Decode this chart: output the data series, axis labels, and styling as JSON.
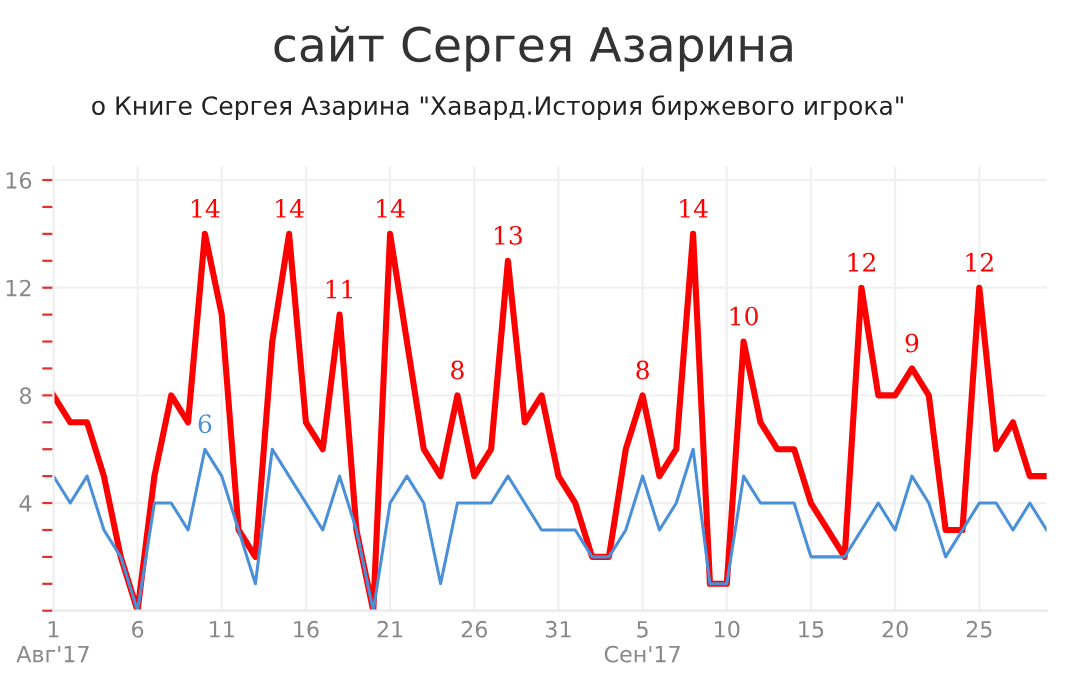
{
  "chart_data": {
    "type": "line",
    "title": "сайт Сергея Азарина",
    "subtitle": "о Книге Сергея Азарина \"Хавард.История биржевого игрока\"",
    "x": [
      "2017-08-01",
      "2017-08-02",
      "2017-08-03",
      "2017-08-04",
      "2017-08-05",
      "2017-08-06",
      "2017-08-07",
      "2017-08-08",
      "2017-08-09",
      "2017-08-10",
      "2017-08-11",
      "2017-08-12",
      "2017-08-13",
      "2017-08-14",
      "2017-08-15",
      "2017-08-16",
      "2017-08-17",
      "2017-08-18",
      "2017-08-19",
      "2017-08-20",
      "2017-08-21",
      "2017-08-22",
      "2017-08-23",
      "2017-08-24",
      "2017-08-25",
      "2017-08-26",
      "2017-08-27",
      "2017-08-28",
      "2017-08-29",
      "2017-08-30",
      "2017-08-31",
      "2017-09-01",
      "2017-09-02",
      "2017-09-03",
      "2017-09-04",
      "2017-09-05",
      "2017-09-06",
      "2017-09-07",
      "2017-09-08",
      "2017-09-09",
      "2017-09-10",
      "2017-09-11",
      "2017-09-12",
      "2017-09-13",
      "2017-09-14",
      "2017-09-15",
      "2017-09-16",
      "2017-09-17",
      "2017-09-18",
      "2017-09-19",
      "2017-09-20",
      "2017-09-21",
      "2017-09-22",
      "2017-09-23",
      "2017-09-24",
      "2017-09-25",
      "2017-09-26",
      "2017-09-27",
      "2017-09-28",
      "2017-09-29"
    ],
    "series": [
      {
        "color": "#ff0000",
        "values": [
          8,
          7,
          7,
          5,
          2,
          0,
          5,
          8,
          7,
          14,
          11,
          3,
          2,
          10,
          14,
          7,
          6,
          11,
          3,
          0,
          14,
          10,
          6,
          5,
          8,
          5,
          6,
          13,
          7,
          8,
          5,
          4,
          2,
          2,
          6,
          8,
          5,
          6,
          14,
          1,
          1,
          10,
          7,
          6,
          6,
          4,
          3,
          2,
          12,
          8,
          8,
          9,
          8,
          3,
          3,
          12,
          6,
          7,
          5,
          5
        ]
      },
      {
        "color": "#4a90d9",
        "values": [
          5,
          4,
          5,
          3,
          2,
          0,
          4,
          4,
          3,
          6,
          5,
          3,
          1,
          6,
          5,
          4,
          3,
          5,
          3,
          0,
          4,
          5,
          4,
          1,
          4,
          4,
          4,
          5,
          4,
          3,
          3,
          3,
          2,
          2,
          3,
          5,
          3,
          4,
          6,
          1,
          1,
          5,
          4,
          4,
          4,
          2,
          2,
          2,
          3,
          4,
          3,
          5,
          4,
          2,
          3,
          4,
          4,
          3,
          4,
          3
        ]
      }
    ],
    "annotations": [
      {
        "text": "14",
        "x": "2017-08-10",
        "y": 14
      },
      {
        "text": "6",
        "x": "2017-08-10",
        "y": 6
      },
      {
        "text": "14",
        "x": "2017-08-15",
        "y": 14
      },
      {
        "text": "11",
        "x": "2017-08-18",
        "y": 11
      },
      {
        "text": "14",
        "x": "2017-08-21",
        "y": 14
      },
      {
        "text": "8",
        "x": "2017-08-25",
        "y": 8
      },
      {
        "text": "13",
        "x": "2017-08-28",
        "y": 13
      },
      {
        "text": "8",
        "x": "2017-09-05",
        "y": 8
      },
      {
        "text": "14",
        "x": "2017-09-08",
        "y": 14
      },
      {
        "text": "10",
        "x": "2017-09-11",
        "y": 10
      },
      {
        "text": "12",
        "x": "2017-09-18",
        "y": 12
      },
      {
        "text": "9",
        "x": "2017-09-21",
        "y": 9
      },
      {
        "text": "12",
        "x": "2017-09-25",
        "y": 12
      }
    ],
    "xlim": [
      "2017-08-01",
      "2017-09-29"
    ],
    "xticks": [
      {
        "value": "2017-08-01",
        "label": "1\nАвг'17"
      },
      {
        "value": "2017-08-06",
        "label": "6"
      },
      {
        "value": "2017-08-11",
        "label": "11"
      },
      {
        "value": "2017-08-16",
        "label": "16"
      },
      {
        "value": "2017-08-21",
        "label": "21"
      },
      {
        "value": "2017-08-26",
        "label": "26"
      },
      {
        "value": "2017-08-31",
        "label": "31"
      },
      {
        "value": "2017-09-05",
        "label": "5\nСен'17"
      },
      {
        "value": "2017-09-10",
        "label": "10"
      },
      {
        "value": "2017-09-15",
        "label": "15"
      },
      {
        "value": "2017-09-20",
        "label": "20"
      },
      {
        "value": "2017-09-25",
        "label": "25"
      }
    ],
    "ylim": [
      0,
      16.5
    ],
    "yticks": [
      {
        "value": 0,
        "label": null
      },
      {
        "value": 1,
        "label": null
      },
      {
        "value": 2,
        "label": null
      },
      {
        "value": 3,
        "label": null
      },
      4,
      {
        "value": 5,
        "label": null
      },
      {
        "value": 6,
        "label": null
      },
      {
        "value": 7,
        "label": null
      },
      8,
      {
        "value": 9,
        "label": null
      },
      {
        "value": 10,
        "label": null
      },
      {
        "value": 11,
        "label": null
      },
      12,
      {
        "value": 13,
        "label": null
      },
      {
        "value": 14,
        "label": null
      },
      {
        "value": 15,
        "label": null
      },
      16
    ],
    "grid": true,
    "marker": "none",
    "line_style": "solid",
    "legend": false
  }
}
